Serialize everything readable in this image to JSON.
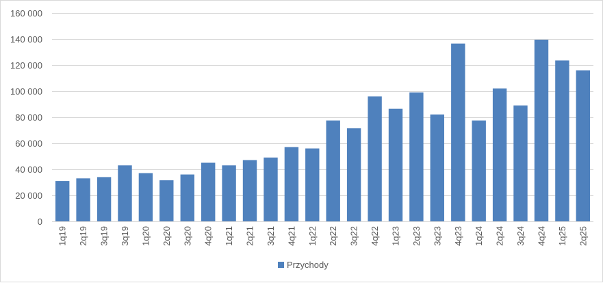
{
  "chart_data": {
    "type": "bar",
    "categories": [
      "1q19",
      "2q19",
      "3q19",
      "3q19",
      "1q20",
      "2q20",
      "3q20",
      "4q20",
      "1q21",
      "2q21",
      "3q21",
      "4q21",
      "1q22",
      "2q22",
      "3q22",
      "4q22",
      "1q23",
      "2q23",
      "3q23",
      "4q23",
      "1q24",
      "2q24",
      "3q24",
      "4q24",
      "1q25",
      "2q25"
    ],
    "series": [
      {
        "name": "Przychody",
        "color": "#4f81bd",
        "values": [
          31000,
          33000,
          34000,
          43000,
          37000,
          31500,
          36000,
          45000,
          43000,
          47000,
          49000,
          57000,
          56000,
          77500,
          71500,
          96000,
          86500,
          99000,
          82000,
          136500,
          77500,
          102000,
          89000,
          139500,
          123500,
          116000
        ]
      }
    ],
    "ylim": [
      0,
      160000
    ],
    "yticks": [
      0,
      20000,
      40000,
      60000,
      80000,
      100000,
      120000,
      140000,
      160000
    ],
    "ytick_labels": [
      "0",
      "20 000",
      "40 000",
      "60 000",
      "80 000",
      "100 000",
      "120 000",
      "140 000",
      "160 000"
    ],
    "grid": true,
    "legend": "bottom"
  }
}
